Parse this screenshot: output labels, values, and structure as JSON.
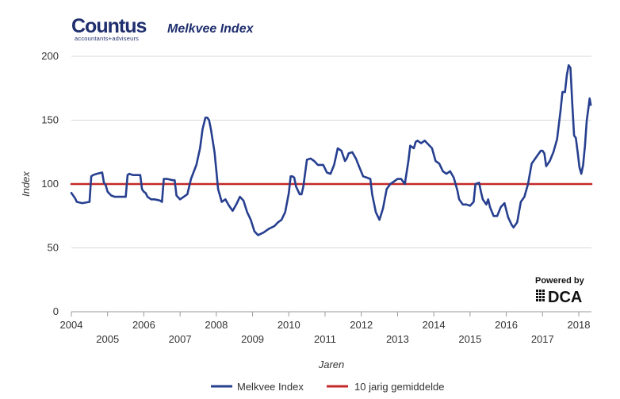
{
  "brand": {
    "name": "Countus",
    "tagline": "accountants+adviseurs"
  },
  "powered_by": {
    "label": "Powered by",
    "name": "DCA"
  },
  "chart_data": {
    "type": "line",
    "title": "Melkvee Index",
    "xlabel": "Jaren",
    "ylabel": "Index",
    "ylim": [
      0,
      200
    ],
    "yticks": [
      0,
      50,
      100,
      150,
      200
    ],
    "xlim": [
      2004,
      2018.35
    ],
    "xticks_upper": [
      "2004",
      "2006",
      "2008",
      "2010",
      "2012",
      "2014",
      "2016",
      "2018"
    ],
    "xticks_lower": [
      "2005",
      "2007",
      "2009",
      "2011",
      "2013",
      "2015",
      "2017"
    ],
    "grid": true,
    "legend_position": "bottom",
    "colors": {
      "index_line": "#263f8f",
      "average_line": "#c42828"
    },
    "series": [
      {
        "name": "Melkvee Index",
        "x": [
          2004.0,
          2004.05,
          2004.1,
          2004.15,
          2004.3,
          2004.5,
          2004.55,
          2004.6,
          2004.7,
          2004.85,
          2004.9,
          2004.95,
          2005.0,
          2005.1,
          2005.2,
          2005.3,
          2005.5,
          2005.55,
          2005.6,
          2005.7,
          2005.9,
          2005.95,
          2006.0,
          2006.05,
          2006.1,
          2006.2,
          2006.3,
          2006.45,
          2006.5,
          2006.55,
          2006.65,
          2006.8,
          2006.85,
          2006.9,
          2007.0,
          2007.2,
          2007.3,
          2007.45,
          2007.55,
          2007.62,
          2007.7,
          2007.75,
          2007.8,
          2007.85,
          2007.95,
          2008.05,
          2008.15,
          2008.25,
          2008.35,
          2008.45,
          2008.55,
          2008.65,
          2008.75,
          2008.85,
          2008.95,
          2009.05,
          2009.15,
          2009.3,
          2009.45,
          2009.6,
          2009.7,
          2009.8,
          2009.9,
          2010.0,
          2010.05,
          2010.1,
          2010.15,
          2010.2,
          2010.3,
          2010.35,
          2010.4,
          2010.5,
          2010.6,
          2010.7,
          2010.8,
          2010.95,
          2011.05,
          2011.15,
          2011.25,
          2011.35,
          2011.45,
          2011.55,
          2011.6,
          2011.65,
          2011.75,
          2011.85,
          2011.95,
          2012.05,
          2012.15,
          2012.25,
          2012.3,
          2012.35,
          2012.4,
          2012.5,
          2012.6,
          2012.7,
          2012.8,
          2012.9,
          2013.0,
          2013.1,
          2013.2,
          2013.3,
          2013.35,
          2013.45,
          2013.5,
          2013.55,
          2013.65,
          2013.75,
          2013.85,
          2013.95,
          2014.05,
          2014.15,
          2014.25,
          2014.35,
          2014.45,
          2014.55,
          2014.65,
          2014.7,
          2014.8,
          2014.9,
          2015.0,
          2015.1,
          2015.15,
          2015.25,
          2015.3,
          2015.35,
          2015.45,
          2015.5,
          2015.55,
          2015.65,
          2015.75,
          2015.85,
          2015.95,
          2016.05,
          2016.15,
          2016.2,
          2016.3,
          2016.4,
          2016.5,
          2016.6,
          2016.7,
          2016.75,
          2016.85,
          2016.95,
          2017.0,
          2017.05,
          2017.1,
          2017.2,
          2017.3,
          2017.4,
          2017.5,
          2017.55,
          2017.62,
          2017.67,
          2017.72,
          2017.77,
          2017.82,
          2017.87,
          2017.92,
          2017.97,
          2018.02,
          2018.07,
          2018.12,
          2018.17,
          2018.22,
          2018.27,
          2018.3,
          2018.33
        ],
        "values": [
          93,
          91,
          89,
          86,
          85,
          86,
          106,
          107,
          108,
          109,
          101,
          99,
          94,
          91,
          90,
          90,
          90,
          107,
          108,
          107,
          107,
          96,
          94,
          93,
          90,
          88,
          88,
          87,
          86,
          104,
          104,
          103,
          103,
          91,
          88,
          92,
          104,
          115,
          128,
          143,
          152,
          152,
          150,
          143,
          125,
          96,
          86,
          88,
          83,
          79,
          84,
          90,
          87,
          78,
          72,
          63,
          60,
          62,
          65,
          67,
          70,
          72,
          78,
          93,
          106,
          106,
          105,
          98,
          92,
          92,
          98,
          119,
          120,
          118,
          115,
          115,
          109,
          108,
          115,
          128,
          126,
          118,
          120,
          124,
          125,
          120,
          113,
          106,
          105,
          104,
          92,
          85,
          78,
          72,
          81,
          96,
          100,
          102,
          104,
          104,
          100,
          118,
          130,
          128,
          133,
          134,
          132,
          134,
          131,
          128,
          118,
          116,
          110,
          108,
          110,
          105,
          95,
          88,
          84,
          84,
          83,
          86,
          100,
          101,
          94,
          88,
          84,
          88,
          82,
          75,
          75,
          82,
          85,
          74,
          68,
          66,
          70,
          86,
          90,
          100,
          116,
          118,
          122,
          126,
          126,
          124,
          114,
          118,
          125,
          135,
          158,
          172,
          172,
          185,
          193,
          191,
          163,
          138,
          136,
          125,
          113,
          108,
          115,
          130,
          150,
          160,
          167,
          162
        ]
      },
      {
        "name": "10 jarig gemiddelde",
        "x": [
          2004,
          2018.35
        ],
        "values": [
          100,
          100
        ]
      }
    ]
  }
}
